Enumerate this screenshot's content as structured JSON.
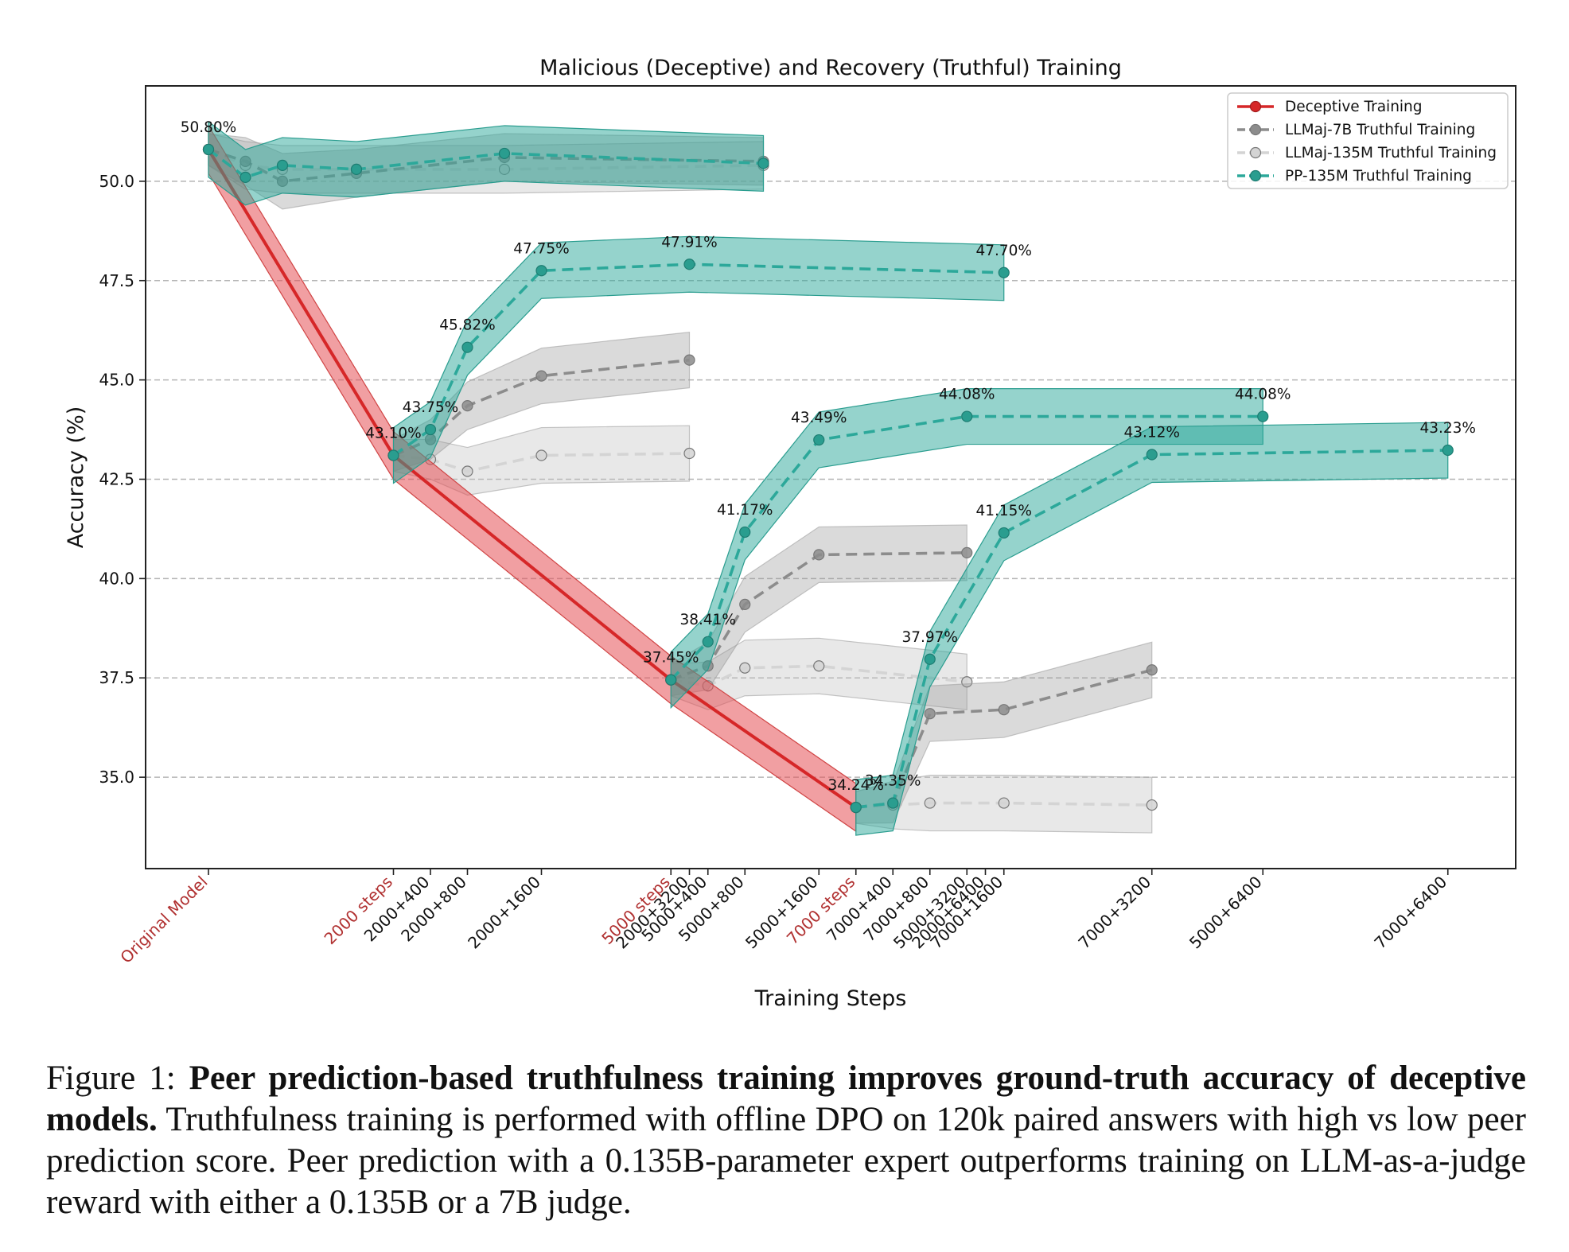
{
  "chart_data": {
    "type": "line",
    "title": "Malicious (Deceptive) and Recovery (Truthful) Training",
    "xlabel": "Training Steps",
    "ylabel": "Accuracy (%)",
    "ylim": [
      32.7,
      52.4
    ],
    "yticks": [
      35.0,
      37.5,
      40.0,
      42.5,
      45.0,
      47.5,
      50.0
    ],
    "ytick_labels": [
      "35.0",
      "37.5",
      "40.0",
      "42.5",
      "45.0",
      "47.5",
      "50.0"
    ],
    "grid": "horizontal dashed",
    "legend_position": "top-right",
    "x_ticks": [
      {
        "label": "Original Model",
        "pos": 0,
        "checkpoint": true
      },
      {
        "label": "2000 steps",
        "pos": 5.0,
        "checkpoint": true
      },
      {
        "label": "2000+400",
        "pos": 6.0
      },
      {
        "label": "2000+800",
        "pos": 7.0
      },
      {
        "label": "2000+1600",
        "pos": 9.0
      },
      {
        "label": "5000 steps",
        "pos": 12.5,
        "checkpoint": true
      },
      {
        "label": "2000+3200",
        "pos": 13.0
      },
      {
        "label": "5000+400",
        "pos": 13.5
      },
      {
        "label": "5000+800",
        "pos": 14.5
      },
      {
        "label": "5000+1600",
        "pos": 16.5
      },
      {
        "label": "7000 steps",
        "pos": 17.5,
        "checkpoint": true
      },
      {
        "label": "7000+400",
        "pos": 18.5
      },
      {
        "label": "7000+800",
        "pos": 19.5
      },
      {
        "label": "5000+3200",
        "pos": 20.5
      },
      {
        "label": "2000+6400",
        "pos": 21.0
      },
      {
        "label": "7000+1600",
        "pos": 21.5
      },
      {
        "label": "7000+3200",
        "pos": 25.5
      },
      {
        "label": "5000+6400",
        "pos": 28.5
      },
      {
        "label": "7000+6400",
        "pos": 33.5
      }
    ],
    "series": [
      {
        "name": "Deceptive Training",
        "style": "solid",
        "color": "#d62728",
        "x": [
          0,
          5.0,
          12.5,
          17.5
        ],
        "y": [
          50.8,
          43.1,
          37.45,
          34.24
        ],
        "band": [
          0.6,
          0.6,
          0.6,
          0.6
        ]
      },
      {
        "name": "LLMaj-7B Truthful Training",
        "style": "dashed",
        "color": "#8c8c8c",
        "segments": [
          {
            "x": [
              0,
              1.0,
              2.0,
              4.0,
              8.0,
              15.0
            ],
            "y": [
              50.8,
              50.5,
              50.0,
              50.2,
              50.6,
              50.5
            ],
            "band": [
              0.4,
              0.6,
              0.7,
              0.6,
              0.6,
              0.6
            ]
          },
          {
            "x": [
              5.0,
              6.0,
              7.0,
              9.0,
              13.0
            ],
            "y": [
              43.1,
              43.5,
              44.35,
              45.1,
              45.5
            ],
            "band": [
              0.4,
              0.5,
              0.6,
              0.7,
              0.7
            ]
          },
          {
            "x": [
              12.5,
              13.5,
              14.5,
              16.5,
              20.5
            ],
            "y": [
              37.45,
              37.8,
              39.35,
              40.6,
              40.65
            ],
            "band": [
              0.4,
              0.6,
              0.7,
              0.7,
              0.7
            ]
          },
          {
            "x": [
              17.5,
              18.5,
              19.5,
              21.5,
              25.5
            ],
            "y": [
              34.24,
              34.35,
              36.6,
              36.7,
              37.7
            ],
            "band": [
              0.4,
              0.5,
              0.7,
              0.7,
              0.7
            ]
          }
        ]
      },
      {
        "name": "LLMaj-135M Truthful Training",
        "style": "dashed",
        "color": "#d4d4d4",
        "segments": [
          {
            "x": [
              0,
              1.0,
              2.0,
              4.0,
              8.0,
              15.0
            ],
            "y": [
              50.8,
              50.4,
              50.3,
              50.3,
              50.3,
              50.4
            ],
            "band": [
              0.4,
              0.6,
              0.6,
              0.6,
              0.6,
              0.6
            ]
          },
          {
            "x": [
              5.0,
              6.0,
              7.0,
              9.0,
              13.0
            ],
            "y": [
              43.1,
              43.0,
              42.7,
              43.1,
              43.15
            ],
            "band": [
              0.4,
              0.5,
              0.6,
              0.7,
              0.7
            ]
          },
          {
            "x": [
              12.5,
              13.5,
              14.5,
              16.5,
              20.5
            ],
            "y": [
              37.45,
              37.3,
              37.75,
              37.8,
              37.4
            ],
            "band": [
              0.4,
              0.6,
              0.7,
              0.7,
              0.7
            ]
          },
          {
            "x": [
              17.5,
              18.5,
              19.5,
              21.5,
              25.5
            ],
            "y": [
              34.24,
              34.3,
              34.35,
              34.35,
              34.3
            ],
            "band": [
              0.4,
              0.6,
              0.7,
              0.7,
              0.7
            ]
          }
        ]
      },
      {
        "name": "PP-135M Truthful Training",
        "style": "dashed",
        "color": "#2ca89a",
        "segments": [
          {
            "x": [
              0,
              1.0,
              2.0,
              4.0,
              8.0,
              15.0
            ],
            "y": [
              50.8,
              50.1,
              50.4,
              50.3,
              50.7,
              50.45
            ],
            "band": [
              0.7,
              0.7,
              0.7,
              0.7,
              0.7,
              0.7
            ]
          },
          {
            "x": [
              5.0,
              6.0,
              7.0,
              9.0,
              13.0,
              21.5
            ],
            "y": [
              43.1,
              43.75,
              45.82,
              47.75,
              47.91,
              47.7
            ],
            "band": [
              0.7,
              0.7,
              0.7,
              0.7,
              0.7,
              0.7
            ]
          },
          {
            "x": [
              12.5,
              13.5,
              14.5,
              16.5,
              20.5,
              28.5
            ],
            "y": [
              37.45,
              38.41,
              41.17,
              43.49,
              44.08,
              44.08
            ],
            "band": [
              0.7,
              0.7,
              0.7,
              0.7,
              0.7,
              0.7
            ]
          },
          {
            "x": [
              17.5,
              18.5,
              19.5,
              21.5,
              25.5,
              33.5
            ],
            "y": [
              34.24,
              34.35,
              37.97,
              41.15,
              43.12,
              43.23
            ],
            "band": [
              0.7,
              0.7,
              0.7,
              0.7,
              0.7,
              0.7
            ]
          }
        ]
      }
    ],
    "annotations": [
      {
        "text": "50.80%",
        "x": 0,
        "y": 50.8
      },
      {
        "text": "43.10%",
        "x": 5.0,
        "y": 43.1
      },
      {
        "text": "43.75%",
        "x": 6.0,
        "y": 43.75
      },
      {
        "text": "45.82%",
        "x": 7.0,
        "y": 45.82
      },
      {
        "text": "47.75%",
        "x": 9.0,
        "y": 47.75
      },
      {
        "text": "47.91%",
        "x": 13.0,
        "y": 47.91
      },
      {
        "text": "47.70%",
        "x": 21.5,
        "y": 47.7
      },
      {
        "text": "37.45%",
        "x": 12.5,
        "y": 37.45
      },
      {
        "text": "38.41%",
        "x": 13.5,
        "y": 38.41
      },
      {
        "text": "41.17%",
        "x": 14.5,
        "y": 41.17
      },
      {
        "text": "43.49%",
        "x": 16.5,
        "y": 43.49
      },
      {
        "text": "44.08%",
        "x": 20.5,
        "y": 44.08
      },
      {
        "text": "44.08%",
        "x": 28.5,
        "y": 44.08
      },
      {
        "text": "34.24%",
        "x": 17.5,
        "y": 34.24
      },
      {
        "text": "34.35%",
        "x": 18.5,
        "y": 34.35
      },
      {
        "text": "37.97%",
        "x": 19.5,
        "y": 37.97
      },
      {
        "text": "41.15%",
        "x": 21.5,
        "y": 41.15
      },
      {
        "text": "43.12%",
        "x": 25.5,
        "y": 43.12
      },
      {
        "text": "43.23%",
        "x": 33.5,
        "y": 43.23
      }
    ]
  },
  "caption": {
    "label": "Figure 1:",
    "bold": "Peer prediction-based truthfulness training improves ground-truth accuracy of deceptive models.",
    "text": "Truthfulness training is performed with offline DPO on 120k paired answers with high vs low peer prediction score. Peer prediction with a 0.135B-parameter expert outperforms training on LLM-as-a-judge reward with either a 0.135B or a 7B judge."
  }
}
